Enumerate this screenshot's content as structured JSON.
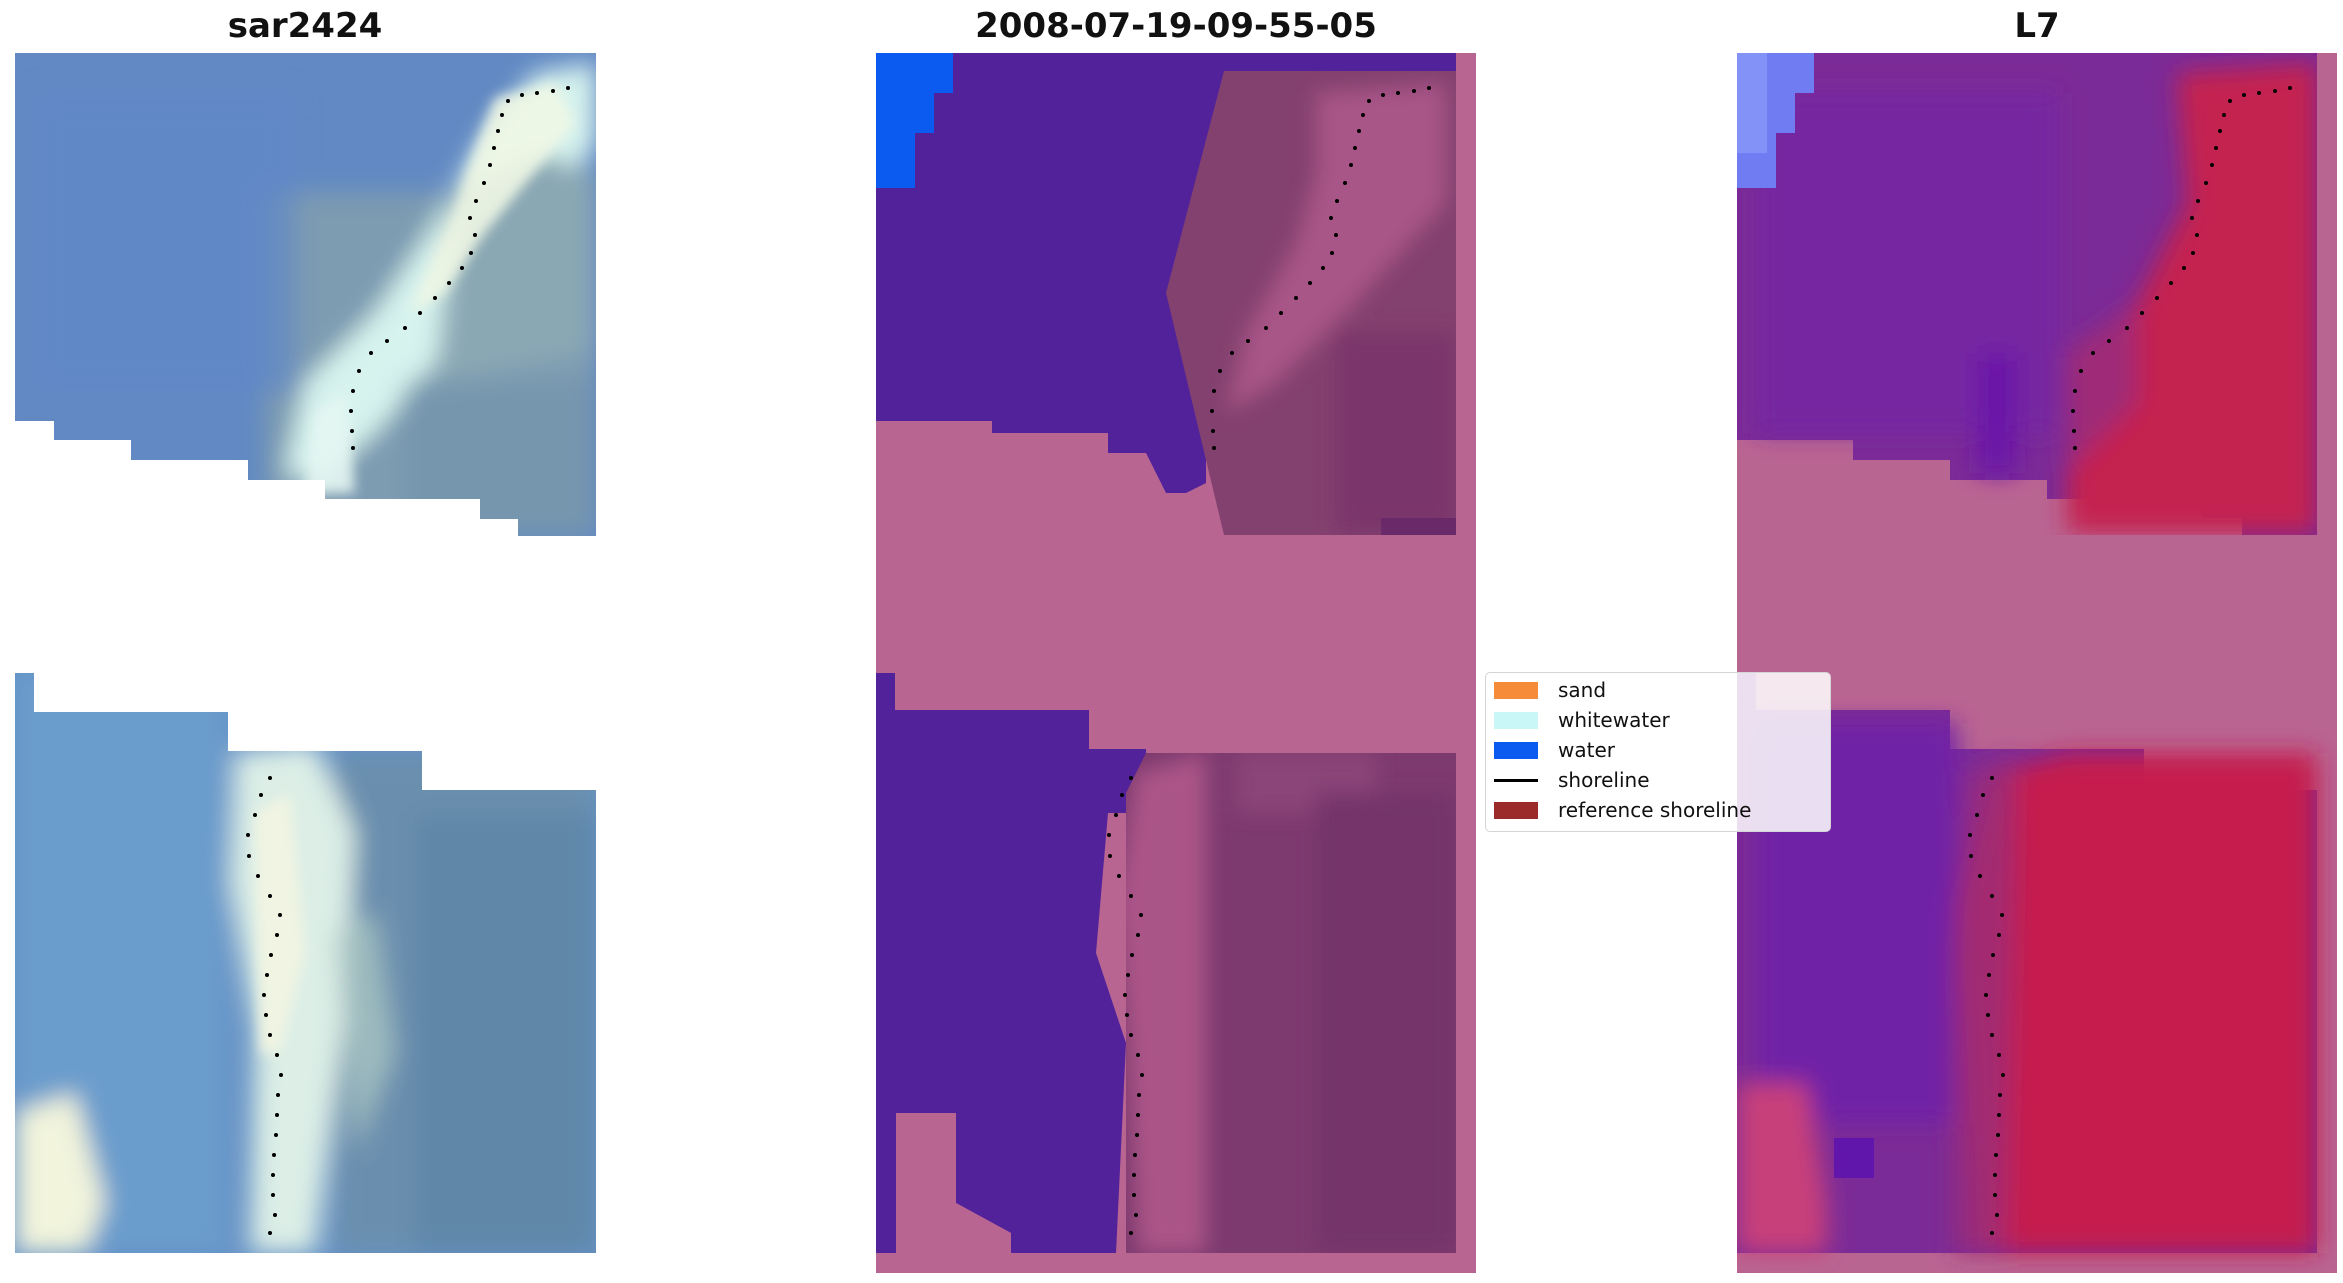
{
  "titles": {
    "left": "sar2424",
    "center": "2008-07-19-09-55-05",
    "right": "L7"
  },
  "legend": {
    "items": [
      {
        "label": "sand",
        "kind": "patch",
        "color": "#f68b3a"
      },
      {
        "label": "whitewater",
        "kind": "patch",
        "color": "#c9f7f7"
      },
      {
        "label": "water",
        "kind": "patch",
        "color": "#0b5bf0"
      },
      {
        "label": "shoreline",
        "kind": "line",
        "color": "#000000"
      },
      {
        "label": "reference shoreline",
        "kind": "patch",
        "color": "#9b2a2a"
      }
    ]
  },
  "colors": {
    "rgb_sea": "#6288c2",
    "rgb_foam": "#d6f2ee",
    "rgb_land": "#7d9ab0",
    "class_water_overlay": "#52229a",
    "class_bg_pink": "#b96592",
    "class_land": "#7d3a6e",
    "ndwi_water": "#6c1aa3",
    "ndwi_land": "#c81c4c",
    "water_blue": "#0b5bf0",
    "shoreline_dot": "#000000"
  }
}
